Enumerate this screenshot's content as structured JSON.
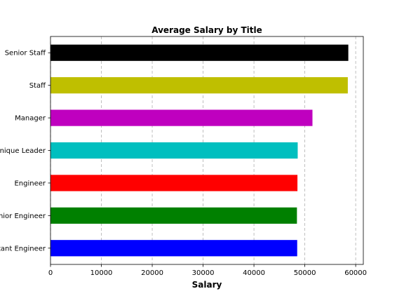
{
  "chart_data": {
    "type": "bar",
    "orientation": "horizontal",
    "title": "Average Salary by Title",
    "xlabel": "Salary",
    "ylabel": "",
    "xlim": [
      0,
      61500
    ],
    "xticks": [
      0,
      10000,
      20000,
      30000,
      40000,
      50000,
      60000
    ],
    "grid": "vertical-dashed",
    "categories": [
      "Assistant Engineer",
      "Senior Engineer",
      "Engineer",
      "Technique Leader",
      "Manager",
      "Staff",
      "Senior Staff"
    ],
    "values": [
      48500,
      48450,
      48550,
      48600,
      51500,
      58450,
      58550
    ],
    "colors": [
      "#0000ff",
      "#008000",
      "#ff0000",
      "#00bfbf",
      "#bf00bf",
      "#bfbf00",
      "#000000"
    ]
  }
}
